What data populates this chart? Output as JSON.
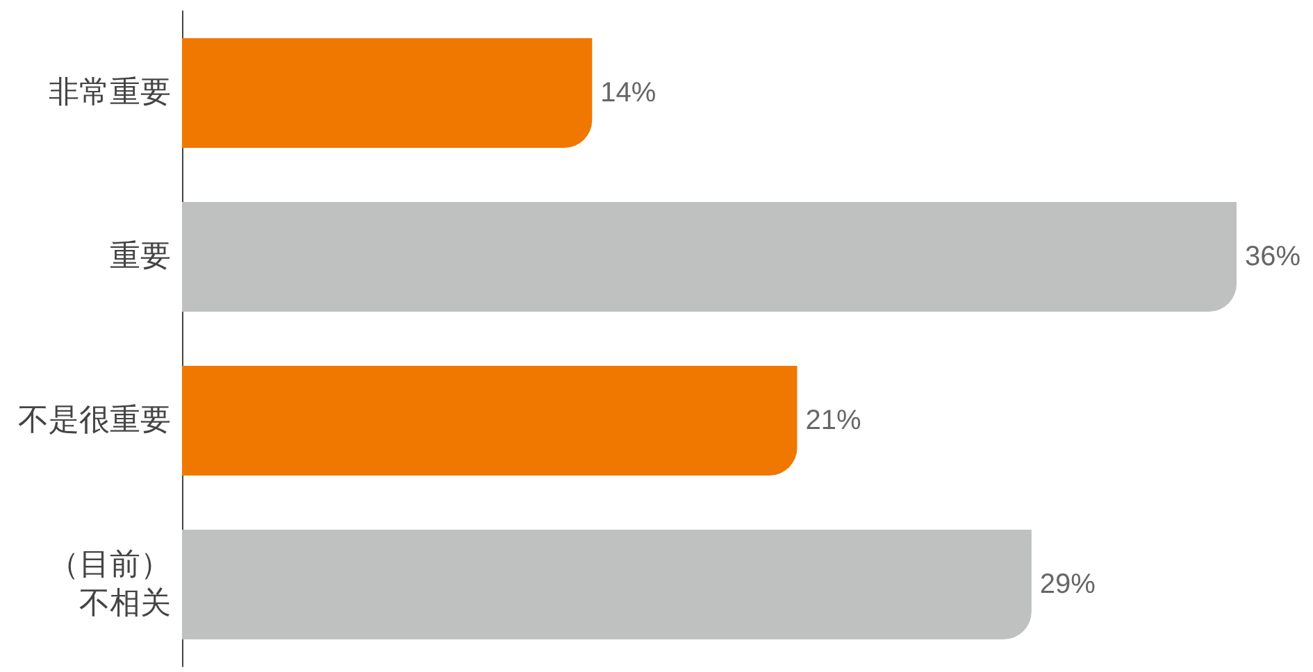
{
  "chart_data": {
    "type": "bar",
    "orientation": "horizontal",
    "categories": [
      "非常重要",
      "重要",
      "不是很重要",
      "（目前）不相关"
    ],
    "values": [
      14,
      36,
      21,
      29
    ],
    "colors": [
      "#f07800",
      "#bfc1c0",
      "#f07800",
      "#bfc1c0"
    ],
    "value_labels": [
      "14%",
      "36%",
      "21%",
      "29%"
    ],
    "grid": false
  }
}
